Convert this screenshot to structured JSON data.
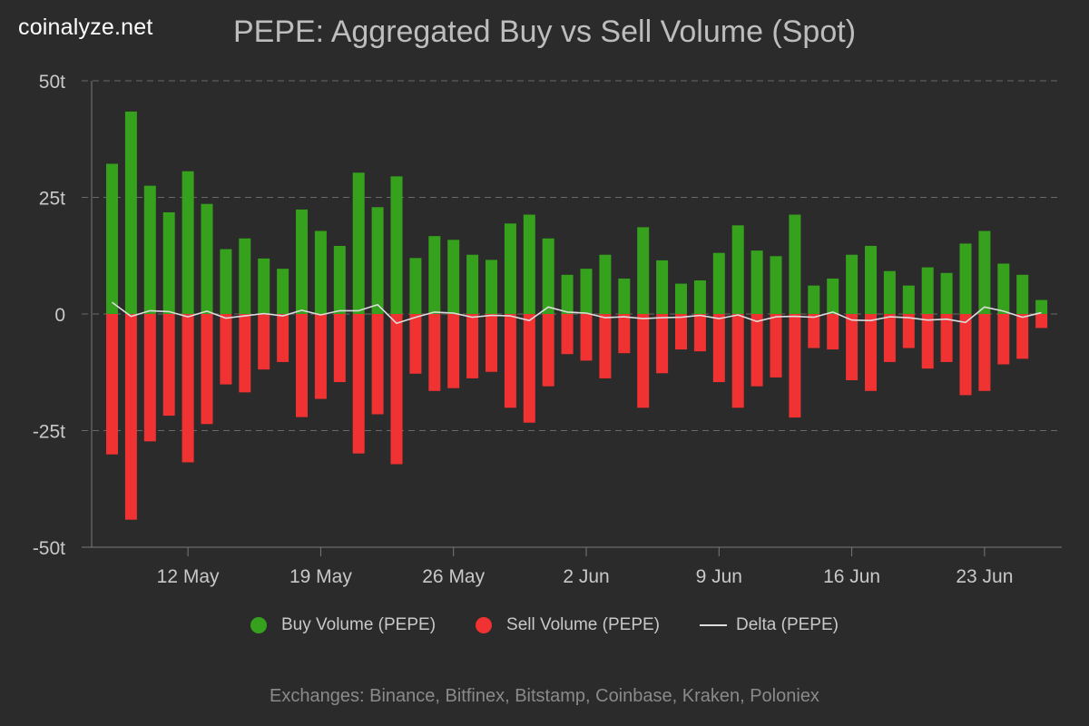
{
  "brand": "coinalyze.net",
  "colors": {
    "buy": "#36a11d",
    "sell": "#f03232",
    "delta": "#dddddd",
    "grid": "#6a6a6a",
    "axis": "#7a7a7a"
  },
  "chart_data": {
    "type": "bar",
    "title": "PEPE: Aggregated Buy vs Sell Volume (Spot)",
    "xlabel": "",
    "ylabel": "",
    "ylim": [
      -50,
      50
    ],
    "y_ticks": [
      {
        "value": 50,
        "label": "50t"
      },
      {
        "value": 25,
        "label": "25t"
      },
      {
        "value": 0,
        "label": "0"
      },
      {
        "value": -25,
        "label": "-25t"
      },
      {
        "value": -50,
        "label": "-50t"
      }
    ],
    "x_ticks": [
      {
        "index": 4,
        "label": "12 May"
      },
      {
        "index": 11,
        "label": "19 May"
      },
      {
        "index": 18,
        "label": "26 May"
      },
      {
        "index": 25,
        "label": "2 Jun"
      },
      {
        "index": 32,
        "label": "9 Jun"
      },
      {
        "index": 39,
        "label": "16 Jun"
      },
      {
        "index": 46,
        "label": "23 Jun"
      }
    ],
    "categories": [
      "8 May",
      "9 May",
      "10 May",
      "11 May",
      "12 May",
      "13 May",
      "14 May",
      "15 May",
      "16 May",
      "17 May",
      "18 May",
      "19 May",
      "20 May",
      "21 May",
      "22 May",
      "23 May",
      "24 May",
      "25 May",
      "26 May",
      "27 May",
      "28 May",
      "29 May",
      "30 May",
      "31 May",
      "1 Jun",
      "2 Jun",
      "3 Jun",
      "4 Jun",
      "5 Jun",
      "6 Jun",
      "7 Jun",
      "8 Jun",
      "9 Jun",
      "10 Jun",
      "11 Jun",
      "12 Jun",
      "13 Jun",
      "14 Jun",
      "15 Jun",
      "16 Jun",
      "17 Jun",
      "18 Jun",
      "19 Jun",
      "20 Jun",
      "21 Jun",
      "22 Jun",
      "23 Jun",
      "24 Jun",
      "25 Jun",
      "26 Jun"
    ],
    "series": [
      {
        "name": "Buy Volume (PEPE)",
        "values": [
          32.2,
          43.4,
          27.5,
          21.8,
          30.6,
          23.6,
          13.9,
          16.2,
          11.9,
          9.7,
          22.4,
          17.8,
          14.6,
          30.3,
          22.9,
          29.5,
          12.0,
          16.7,
          15.9,
          12.7,
          11.6,
          19.4,
          21.3,
          16.2,
          8.4,
          9.7,
          12.7,
          7.6,
          18.6,
          11.5,
          6.5,
          7.2,
          13.1,
          19.0,
          13.6,
          12.4,
          21.3,
          6.1,
          7.6,
          12.7,
          14.6,
          9.2,
          6.1,
          10.0,
          8.8,
          15.1,
          17.8,
          10.8,
          8.4,
          3.0
        ]
      },
      {
        "name": "Sell Volume (PEPE)",
        "values": [
          -30.1,
          -44.1,
          -27.3,
          -21.8,
          -31.8,
          -23.6,
          -15.1,
          -16.8,
          -11.9,
          -10.3,
          -22.1,
          -18.2,
          -14.6,
          -29.9,
          -21.5,
          -32.2,
          -12.8,
          -16.5,
          -15.9,
          -13.8,
          -12.4,
          -20.1,
          -23.3,
          -15.5,
          -8.6,
          -10.0,
          -13.8,
          -8.4,
          -20.1,
          -12.7,
          -7.6,
          -8.0,
          -14.6,
          -20.1,
          -15.5,
          -13.6,
          -22.2,
          -7.3,
          -7.6,
          -14.2,
          -16.5,
          -10.3,
          -7.3,
          -11.7,
          -10.3,
          -17.4,
          -16.5,
          -10.8,
          -9.6,
          -3.0
        ]
      },
      {
        "name": "Delta (PEPE)",
        "values": [
          2.5,
          -0.5,
          0.7,
          0.5,
          -0.6,
          0.6,
          -0.9,
          -0.4,
          0.1,
          -0.4,
          0.8,
          -0.2,
          0.7,
          0.7,
          2.0,
          -2.0,
          -0.7,
          0.4,
          0.2,
          -0.7,
          -0.3,
          -0.4,
          -1.4,
          1.5,
          0.4,
          0.2,
          -0.8,
          -0.6,
          -1.0,
          -0.8,
          -0.7,
          -0.3,
          -1.0,
          -0.2,
          -1.6,
          -0.6,
          -0.5,
          -0.7,
          0.4,
          -1.3,
          -1.4,
          -0.6,
          -0.8,
          -1.3,
          -1.1,
          -1.8,
          1.5,
          0.6,
          -0.7,
          0.3
        ]
      }
    ],
    "legend_position": "bottom"
  },
  "footer": "Exchanges: Binance, Bitfinex, Bitstamp, Coinbase, Kraken, Poloniex"
}
